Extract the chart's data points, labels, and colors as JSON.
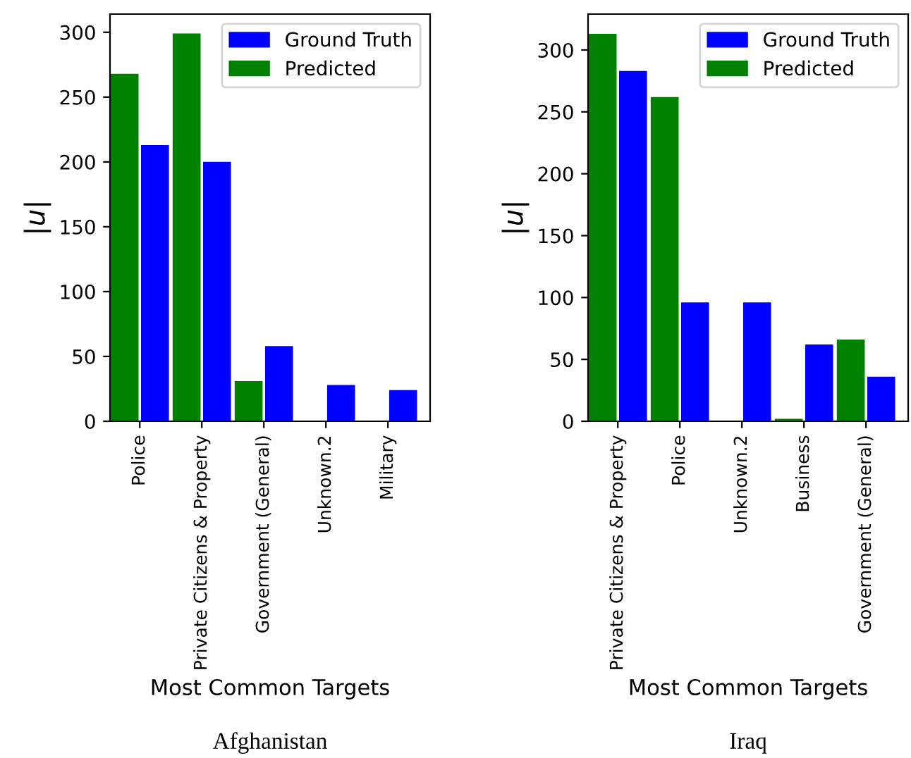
{
  "chart_data": [
    {
      "type": "bar",
      "xlabel": "Most Common Targets",
      "ylabel": "|u|",
      "categories": [
        "Police",
        "Private Citizens & Property",
        "Government (General)",
        "Unknown.2",
        "Military"
      ],
      "series": [
        {
          "name": "Ground Truth",
          "color": "#0000ff",
          "values": [
            213,
            200,
            58,
            28,
            24
          ]
        },
        {
          "name": "Predicted",
          "color": "#008000",
          "values": [
            268,
            299,
            31,
            0,
            0
          ]
        }
      ],
      "ylim": [
        0,
        314
      ],
      "yticks": [
        0,
        50,
        100,
        150,
        200,
        250,
        300
      ],
      "grid": false,
      "legend": "top right",
      "annotations": [
        "Afghanistan"
      ]
    },
    {
      "type": "bar",
      "xlabel": "Most Common Targets",
      "ylabel": "|u|",
      "categories": [
        "Private Citizens & Property",
        "Police",
        "Unknown.2",
        "Business",
        "Government (General)"
      ],
      "series": [
        {
          "name": "Ground Truth",
          "color": "#0000ff",
          "values": [
            283,
            96,
            96,
            62,
            36
          ]
        },
        {
          "name": "Predicted",
          "color": "#008000",
          "values": [
            313,
            262,
            0,
            2,
            66
          ]
        }
      ],
      "ylim": [
        0,
        329
      ],
      "yticks": [
        0,
        50,
        100,
        150,
        200,
        250,
        300
      ],
      "grid": false,
      "legend": "top right",
      "annotations": [
        "Iraq"
      ]
    }
  ]
}
